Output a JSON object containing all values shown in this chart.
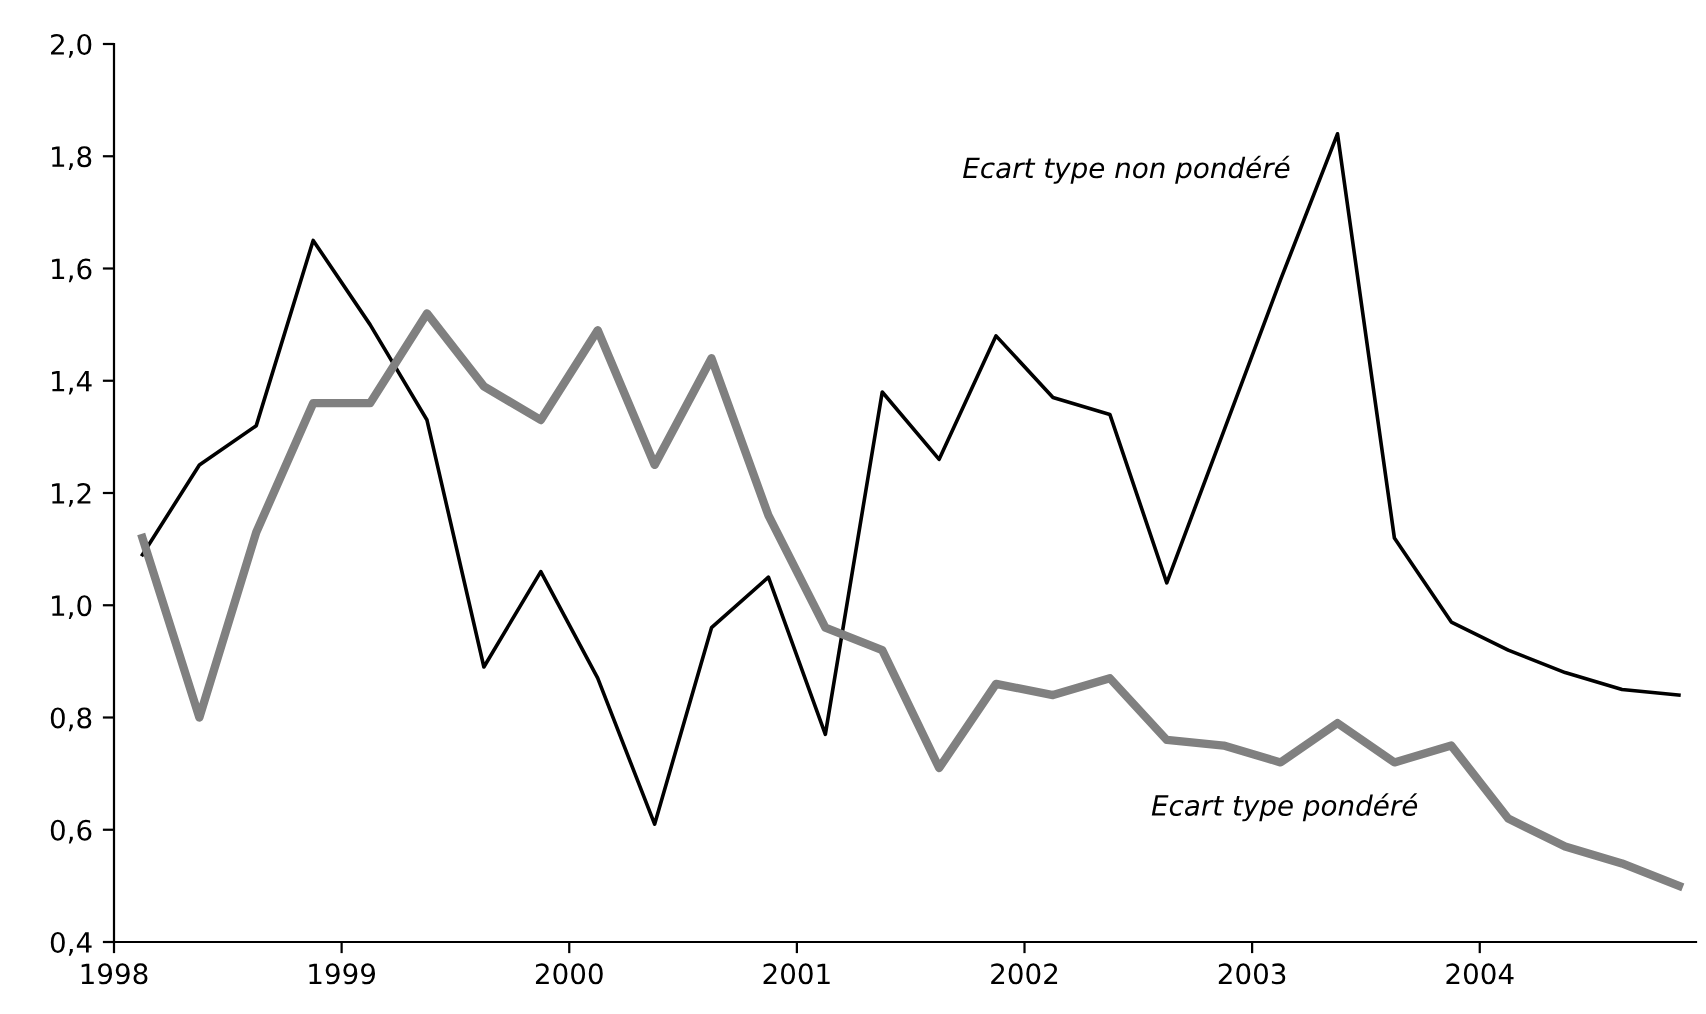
{
  "chart_data": {
    "type": "line",
    "x": [
      1998.125,
      1998.375,
      1998.625,
      1998.875,
      1999.125,
      1999.375,
      1999.625,
      1999.875,
      2000.125,
      2000.375,
      2000.625,
      2000.875,
      2001.125,
      2001.375,
      2001.625,
      2001.875,
      2002.125,
      2002.375,
      2002.625,
      2002.875,
      2003.125,
      2003.375,
      2003.625,
      2003.875,
      2004.125,
      2004.375,
      2004.625,
      2004.875
    ],
    "series": [
      {
        "name": "Ecart type non pondéré",
        "color": "#000000",
        "values": [
          1.09,
          1.25,
          1.32,
          1.65,
          1.5,
          1.33,
          0.89,
          1.06,
          0.87,
          0.61,
          0.96,
          1.05,
          0.77,
          1.38,
          1.26,
          1.48,
          1.37,
          1.34,
          1.04,
          1.31,
          1.58,
          1.84,
          1.12,
          0.97,
          0.92,
          0.88,
          0.85,
          0.84
        ]
      },
      {
        "name": "Ecart type pondéré",
        "color": "#808080",
        "values": [
          1.12,
          0.8,
          1.13,
          1.36,
          1.36,
          1.52,
          1.39,
          1.33,
          1.49,
          1.25,
          1.44,
          1.16,
          0.96,
          0.92,
          0.71,
          0.86,
          0.84,
          0.87,
          0.76,
          0.75,
          0.72,
          0.79,
          0.72,
          0.75,
          0.62,
          0.57,
          0.54,
          0.5
        ]
      }
    ],
    "xlim": [
      1998,
      2004.95
    ],
    "xticks": [
      1998,
      1999,
      2000,
      2001,
      2002,
      2003,
      2004
    ],
    "ylim": [
      0.4,
      2.0
    ],
    "yticks": [
      {
        "value": 0.4,
        "label": "0,4"
      },
      {
        "value": 0.6,
        "label": "0,6"
      },
      {
        "value": 0.8,
        "label": "0,8"
      },
      {
        "value": 1.0,
        "label": "1,0"
      },
      {
        "value": 1.2,
        "label": "1,2"
      },
      {
        "value": 1.4,
        "label": "1,4"
      },
      {
        "value": 1.6,
        "label": "1,6"
      },
      {
        "value": 1.8,
        "label": "1,8"
      },
      {
        "value": 2.0,
        "label": "2,0"
      }
    ],
    "grid": false,
    "legend": false,
    "marker": "none",
    "line_style": "solid"
  }
}
